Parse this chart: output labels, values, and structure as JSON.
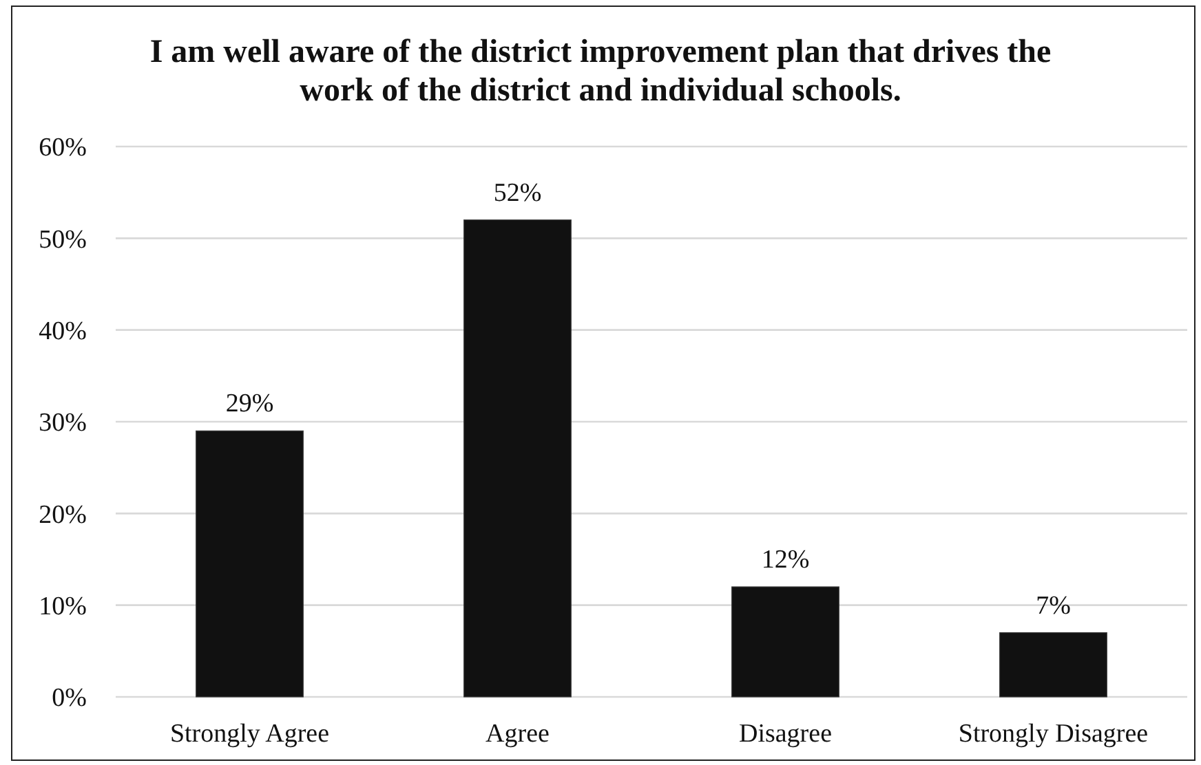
{
  "chart_data": {
    "type": "bar",
    "title": "I am well aware of the district improvement plan that drives the work of the district and individual schools.",
    "categories": [
      "Strongly Agree",
      "Agree",
      "Disagree",
      "Strongly Disagree"
    ],
    "values": [
      29,
      52,
      12,
      7
    ],
    "value_labels": [
      "29%",
      "52%",
      "12%",
      "7%"
    ],
    "color": "#111111",
    "ylim": [
      0,
      60
    ],
    "yticks": [
      {
        "value": 0,
        "label": "0%"
      },
      {
        "value": 10,
        "label": "10%"
      },
      {
        "value": 20,
        "label": "20%"
      },
      {
        "value": 30,
        "label": "30%"
      },
      {
        "value": 40,
        "label": "40%"
      },
      {
        "value": 50,
        "label": "50%"
      },
      {
        "value": 60,
        "label": "60%"
      }
    ],
    "grid": "y"
  }
}
